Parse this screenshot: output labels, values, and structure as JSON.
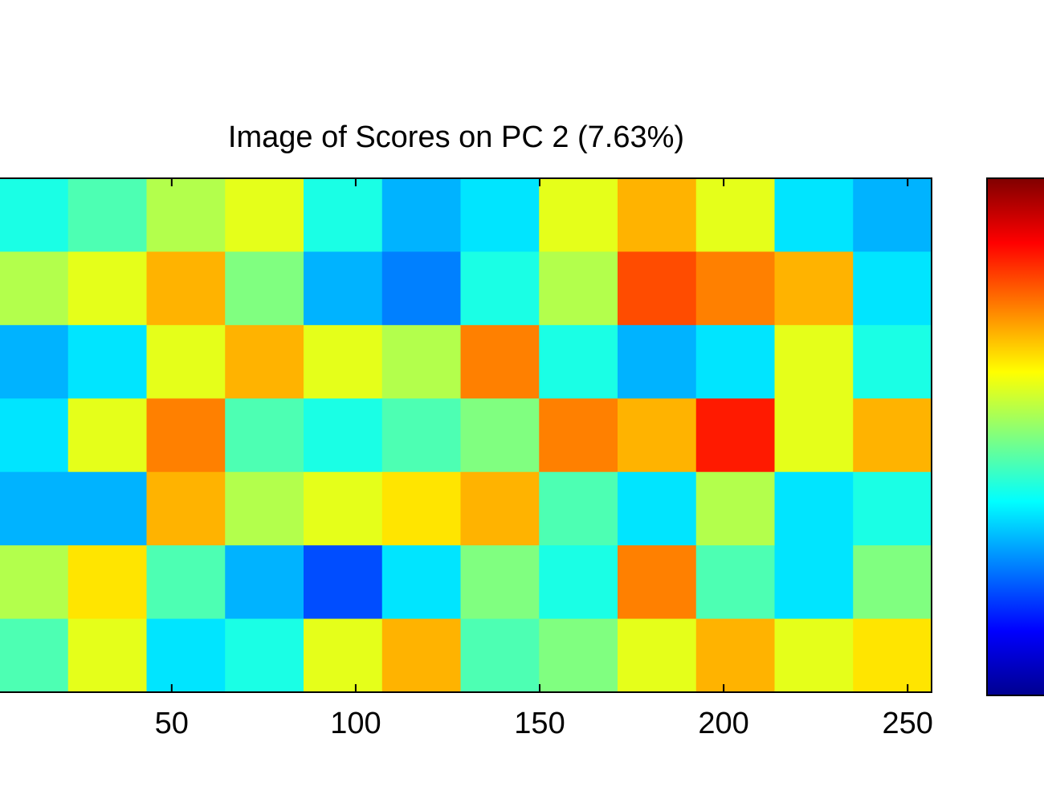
{
  "chart_data": {
    "type": "heatmap",
    "title": "Image of Scores on PC 2 (7.63%)",
    "colormap": "jet",
    "clim": [
      0,
      1
    ],
    "xlim": [
      0.5,
      256.5
    ],
    "xticks": [
      50,
      100,
      150,
      200,
      250
    ],
    "values": [
      [
        0.4,
        0.45,
        0.55,
        0.6,
        0.4,
        0.3,
        0.35,
        0.6,
        0.7,
        0.6,
        0.35,
        0.3
      ],
      [
        0.55,
        0.6,
        0.7,
        0.5,
        0.3,
        0.25,
        0.4,
        0.55,
        0.8,
        0.75,
        0.7,
        0.35
      ],
      [
        0.3,
        0.35,
        0.6,
        0.7,
        0.6,
        0.55,
        0.75,
        0.4,
        0.3,
        0.35,
        0.6,
        0.4
      ],
      [
        0.35,
        0.6,
        0.75,
        0.45,
        0.4,
        0.45,
        0.5,
        0.75,
        0.7,
        0.85,
        0.6,
        0.7
      ],
      [
        0.3,
        0.3,
        0.7,
        0.55,
        0.6,
        0.65,
        0.7,
        0.45,
        0.35,
        0.55,
        0.35,
        0.4
      ],
      [
        0.55,
        0.65,
        0.45,
        0.3,
        0.2,
        0.35,
        0.5,
        0.4,
        0.75,
        0.45,
        0.35,
        0.5
      ],
      [
        0.45,
        0.6,
        0.35,
        0.4,
        0.6,
        0.7,
        0.45,
        0.5,
        0.6,
        0.7,
        0.6,
        0.65
      ]
    ]
  }
}
